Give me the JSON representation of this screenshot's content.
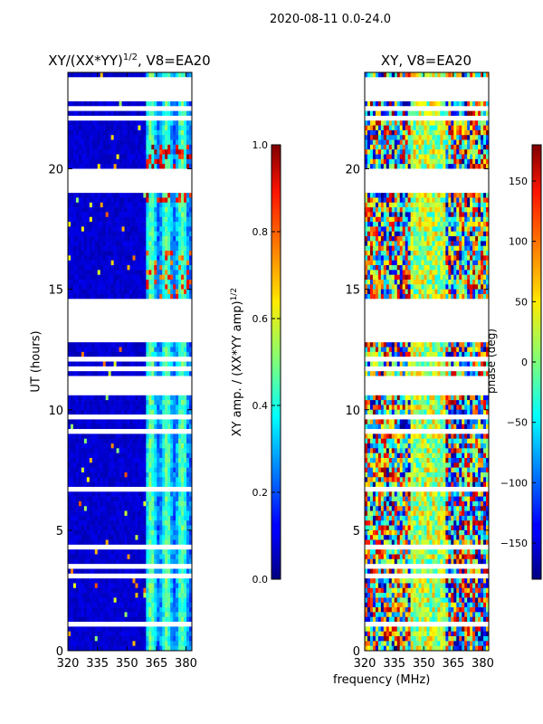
{
  "suptitle": "2020-08-11 0.0-24.0",
  "chart_data": [
    {
      "type": "heatmap",
      "title": "XY/(XX*YY)^1/2, V8=EA20",
      "title_main": "XY/(XX*YY)",
      "title_sup": "1/2",
      "title_rest": ", V8=EA20",
      "xlabel": "",
      "ylabel": "UT (hours)",
      "xlim": [
        320,
        383
      ],
      "ylim": [
        0,
        24
      ],
      "x_ticks": [
        320,
        335,
        350,
        365,
        380
      ],
      "y_ticks": [
        0,
        5,
        10,
        15,
        20
      ],
      "colorbar": {
        "label": "XY amp. / (XX*YY amp)^1/2",
        "label_main": "XY amp. / (XX*YY amp)",
        "label_sup": "1/2",
        "range": [
          0.0,
          1.0
        ],
        "ticks": [
          "0.0",
          "0.2",
          "0.4",
          "0.6",
          "0.8",
          "1.0"
        ]
      }
    },
    {
      "type": "heatmap",
      "title": "XY, V8=EA20",
      "xlabel": "frequency (MHz)",
      "ylabel": "",
      "xlim": [
        320,
        383
      ],
      "ylim": [
        0,
        24
      ],
      "x_ticks": [
        320,
        335,
        350,
        365,
        380
      ],
      "y_ticks": [
        0,
        5,
        10,
        15,
        20
      ],
      "colorbar": {
        "label": "phase (deg)",
        "range": [
          -180,
          180
        ],
        "ticks": [
          "150",
          "100",
          "50",
          "0",
          "−50",
          "−100",
          "−150"
        ],
        "tick_values": [
          150,
          100,
          50,
          0,
          -50,
          -100,
          -150
        ]
      }
    }
  ]
}
